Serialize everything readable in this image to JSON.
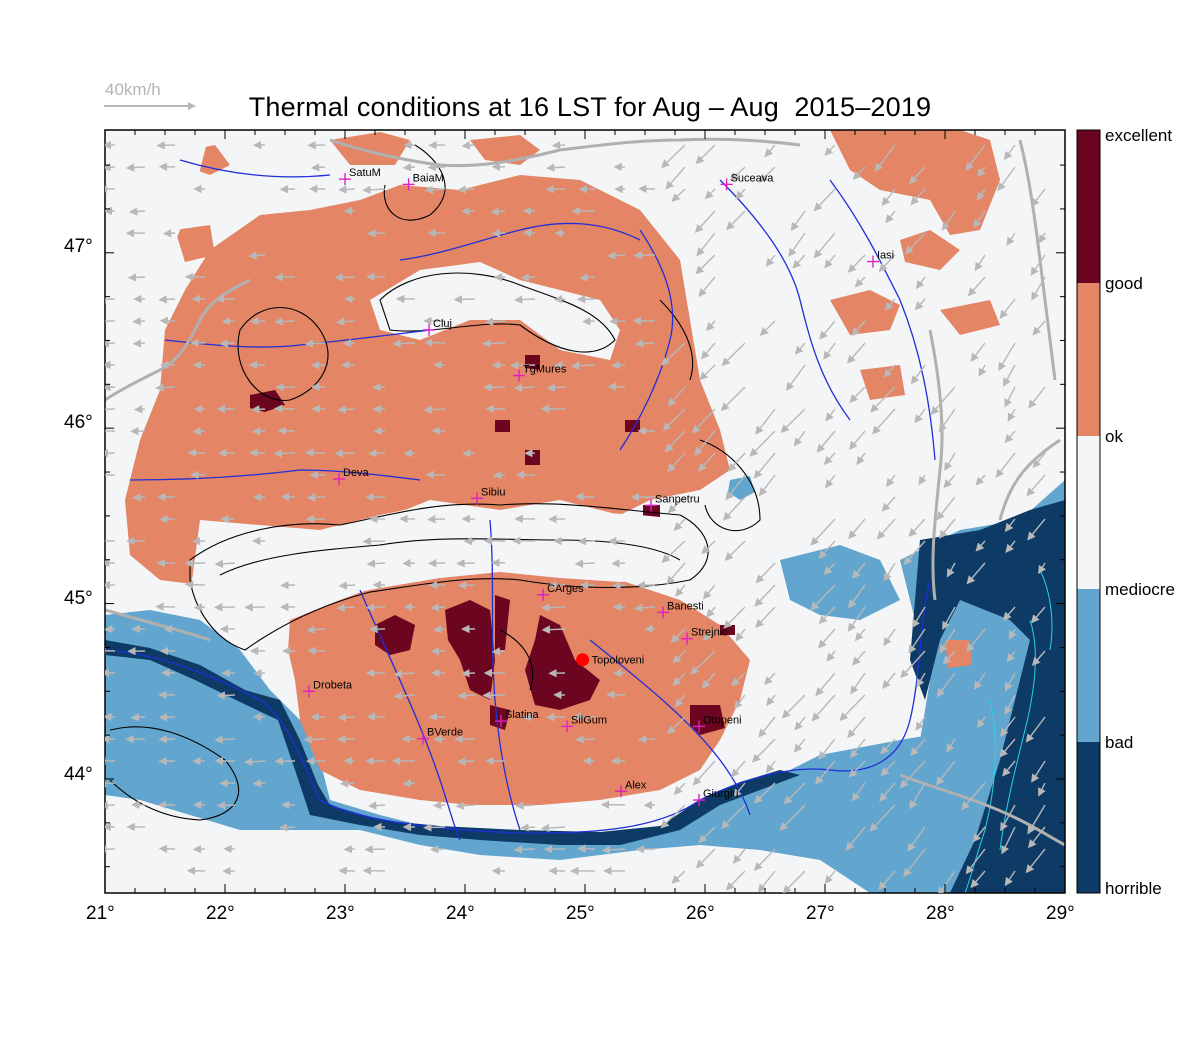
{
  "map": {
    "title": "Thermal conditions at 16 LST for Aug – Aug  2015–2019",
    "wind_scale_label": "40km/h",
    "lon_range": [
      21,
      29
    ],
    "lat_range": [
      43.35,
      47.7
    ],
    "lon_ticks": [
      "21°",
      "22°",
      "23°",
      "24°",
      "25°",
      "26°",
      "27°",
      "28°",
      "29°"
    ],
    "lat_ticks": [
      "44°",
      "45°",
      "46°",
      "47°"
    ],
    "colors": {
      "horrible": "#0d3b66",
      "bad": "#62a6cf",
      "mediocre": "#f4f5f7",
      "ok": "#e48566",
      "good": "#6b0520",
      "rivers": "#1f2fd8",
      "borders": "#b0b0b0",
      "contours": "#000000",
      "stations": "#e020c0",
      "wind": "#b8b8b8",
      "home": "#ff0000"
    },
    "colorbar": {
      "labels": [
        "excellent",
        "good",
        "ok",
        "mediocre",
        "bad",
        "horrible"
      ]
    },
    "cities": [
      {
        "name": "SatuM",
        "lon": 23.0,
        "lat": 47.42
      },
      {
        "name": "BaiaM",
        "lon": 23.53,
        "lat": 47.39
      },
      {
        "name": "Suceava",
        "lon": 26.18,
        "lat": 47.39
      },
      {
        "name": "Iasi",
        "lon": 27.4,
        "lat": 46.95
      },
      {
        "name": "Cluj",
        "lon": 23.7,
        "lat": 46.56
      },
      {
        "name": "TgMures",
        "lon": 24.45,
        "lat": 46.3
      },
      {
        "name": "Deva",
        "lon": 22.95,
        "lat": 45.71
      },
      {
        "name": "Sibiu",
        "lon": 24.1,
        "lat": 45.6
      },
      {
        "name": "Sanpetru",
        "lon": 25.55,
        "lat": 45.56
      },
      {
        "name": "CArges",
        "lon": 24.65,
        "lat": 45.05
      },
      {
        "name": "Banesti",
        "lon": 25.65,
        "lat": 44.95
      },
      {
        "name": "Strejnic",
        "lon": 25.85,
        "lat": 44.8
      },
      {
        "name": "Drobeta",
        "lon": 22.7,
        "lat": 44.5
      },
      {
        "name": "Slatina",
        "lon": 24.3,
        "lat": 44.33
      },
      {
        "name": "SilGum",
        "lon": 24.85,
        "lat": 44.3
      },
      {
        "name": "Otopeni",
        "lon": 25.95,
        "lat": 44.3
      },
      {
        "name": "BVerde",
        "lon": 23.65,
        "lat": 44.23
      },
      {
        "name": "Alex",
        "lon": 25.3,
        "lat": 43.93
      },
      {
        "name": "Giurgiu",
        "lon": 25.95,
        "lat": 43.88
      }
    ],
    "home_site": {
      "name": "Topoloveni",
      "lon": 24.98,
      "lat": 44.68
    }
  }
}
